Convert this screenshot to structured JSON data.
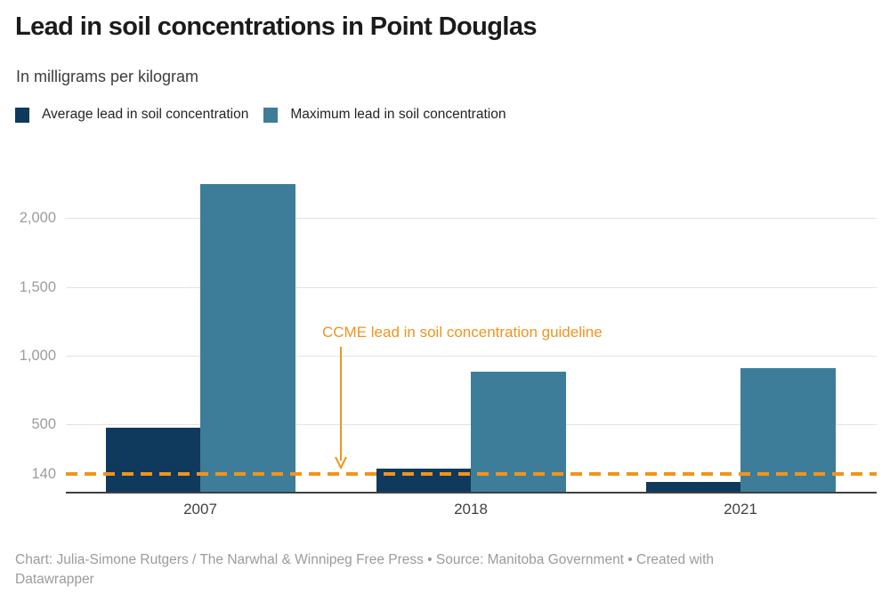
{
  "header": {
    "title": "Lead in soil concentrations in Point Douglas",
    "subtitle": "In milligrams per kilogram"
  },
  "legend": [
    {
      "label": "Average lead in soil concentration",
      "color": "#0f3a5d"
    },
    {
      "label": "Maximum lead in soil concentration",
      "color": "#3e7d99"
    }
  ],
  "chart_data": {
    "type": "bar",
    "title": "Lead in soil concentrations in Point Douglas",
    "subtitle": "In milligrams per kilogram",
    "unit": "milligrams per kilogram",
    "categories": [
      "2007",
      "2018",
      "2021"
    ],
    "series": [
      {
        "name": "Average lead in soil concentration",
        "color": "#0f3a5d",
        "values": [
          475,
          180,
          80
        ]
      },
      {
        "name": "Maximum lead in soil concentration",
        "color": "#3e7d99",
        "values": [
          2250,
          880,
          910
        ]
      }
    ],
    "y_ticks": [
      140,
      500,
      1000,
      1500,
      2000
    ],
    "y_tick_labels": [
      "140",
      "500",
      "1,000",
      "1,500",
      "2,000"
    ],
    "y_gridlines": [
      500,
      1000,
      1500,
      2000
    ],
    "ylim": [
      0,
      2420
    ],
    "grid": "horizontal",
    "legend_position": "top",
    "guideline": {
      "value": 140,
      "label": "CCME lead in soil concentration guideline",
      "color": "#f0941d",
      "style": "dashed"
    }
  },
  "footer": {
    "line1": "Chart: Julia-Simone Rutgers / The Narwhal & Winnipeg Free Press • Source: Manitoba Government • Created with",
    "line2": "Datawrapper"
  }
}
